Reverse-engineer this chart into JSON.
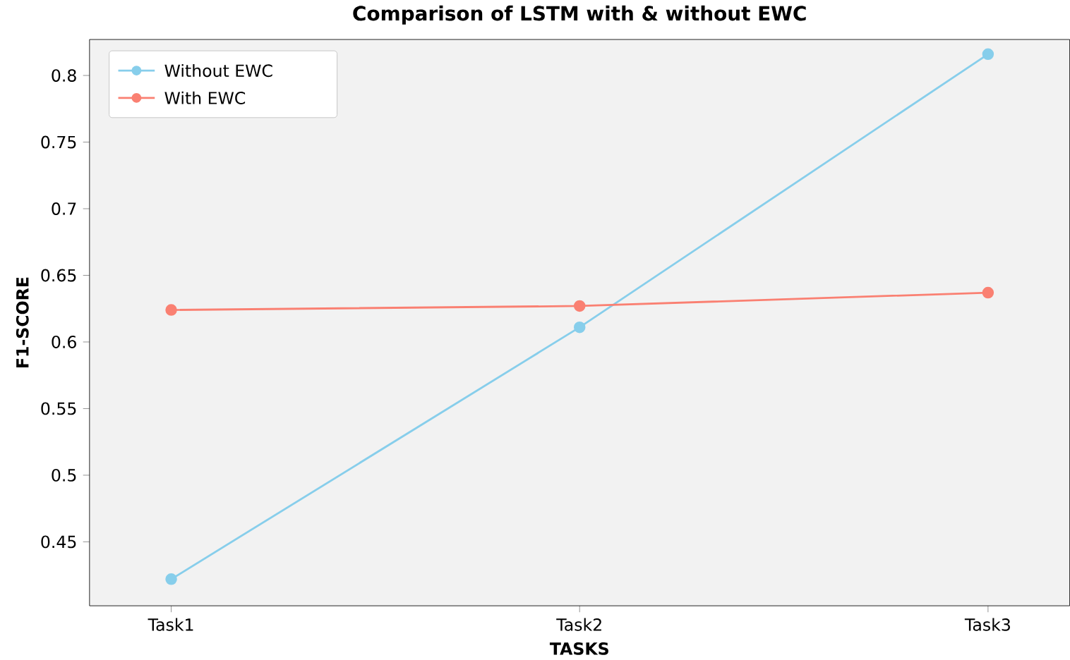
{
  "chart_data": {
    "type": "line",
    "title": "Comparison of LSTM with & without EWC",
    "xlabel": "TASKS",
    "ylabel": "F1-SCORE",
    "categories": [
      "Task1",
      "Task2",
      "Task3"
    ],
    "series": [
      {
        "name": "Without EWC",
        "color": "#87ceeb",
        "values": [
          0.422,
          0.611,
          0.816
        ]
      },
      {
        "name": "With EWC",
        "color": "#fa8072",
        "values": [
          0.624,
          0.627,
          0.637
        ]
      }
    ],
    "ylim": [
      0.402,
      0.827
    ],
    "yticks": [
      0.45,
      0.5,
      0.55,
      0.6,
      0.65,
      0.7,
      0.75,
      0.8
    ],
    "legend": "top left",
    "marker": "circle",
    "grid": false
  }
}
